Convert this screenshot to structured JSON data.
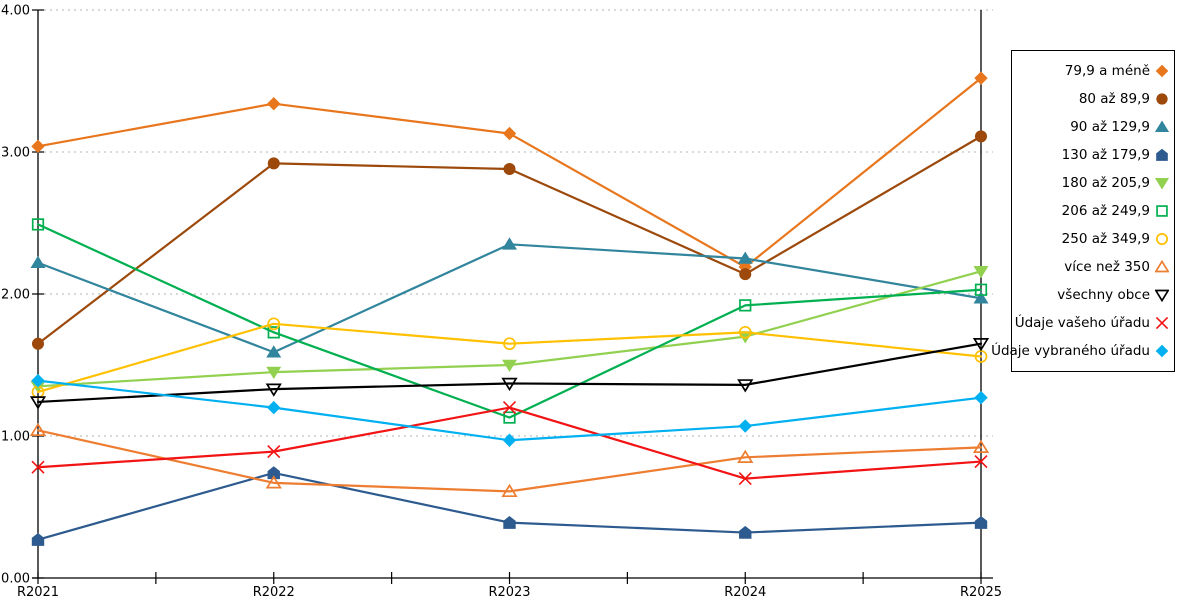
{
  "chart_data": {
    "type": "line",
    "title": "",
    "xlabel": "",
    "ylabel": "",
    "x_categories": [
      "R2021",
      "R2022",
      "R2023",
      "R2024",
      "R2025"
    ],
    "y_tick_labels": [
      "4.00",
      "3.00",
      "2.00",
      "1.00",
      "0.00"
    ],
    "ylim": [
      0,
      4
    ],
    "grid": "horizontal-dotted",
    "grid_color": "#b3b3b3",
    "axis_color": "#000000",
    "legend_position": "right",
    "series": [
      {
        "name": "79,9 a méně",
        "color": "#E8761D",
        "marker": "diamond",
        "filled": true,
        "values": [
          3.04,
          3.34,
          3.13,
          2.19,
          3.52
        ]
      },
      {
        "name": "80 až 89,9",
        "color": "#9C490B",
        "marker": "circle",
        "filled": true,
        "values": [
          1.65,
          2.92,
          2.88,
          2.14,
          3.11
        ]
      },
      {
        "name": "90 až 129,9",
        "color": "#31859C",
        "marker": "triangle-up",
        "filled": true,
        "values": [
          2.22,
          1.59,
          2.35,
          2.25,
          1.97
        ]
      },
      {
        "name": "130 až 179,9",
        "color": "#2E5B8F",
        "marker": "pentagon",
        "filled": true,
        "values": [
          0.27,
          0.74,
          0.39,
          0.32,
          0.39
        ]
      },
      {
        "name": "180 až 205,9",
        "color": "#92D050",
        "marker": "triangle-down",
        "filled": true,
        "values": [
          1.35,
          1.45,
          1.5,
          1.7,
          2.16
        ]
      },
      {
        "name": "206 až 249,9",
        "color": "#00B050",
        "marker": "square",
        "filled": false,
        "values": [
          2.49,
          1.73,
          1.13,
          1.92,
          2.03
        ]
      },
      {
        "name": "250 až 349,9",
        "color": "#FFC000",
        "marker": "circle",
        "filled": false,
        "values": [
          1.31,
          1.79,
          1.65,
          1.73,
          1.56
        ]
      },
      {
        "name": "více než 350",
        "color": "#ED7D31",
        "marker": "triangle-up",
        "filled": false,
        "values": [
          1.04,
          0.67,
          0.61,
          0.85,
          0.92
        ]
      },
      {
        "name": "všechny obce",
        "color": "#000000",
        "marker": "triangle-down",
        "filled": false,
        "values": [
          1.24,
          1.33,
          1.37,
          1.36,
          1.65
        ]
      },
      {
        "name": "Údaje vašeho úřadu",
        "color": "#F21414",
        "marker": "x",
        "filled": false,
        "values": [
          0.78,
          0.89,
          1.2,
          0.7,
          0.82
        ]
      },
      {
        "name": "Údaje vybraného úřadu",
        "color": "#00B0F0",
        "marker": "diamond",
        "filled": true,
        "values": [
          1.39,
          1.2,
          0.97,
          1.07,
          1.27
        ]
      }
    ]
  }
}
